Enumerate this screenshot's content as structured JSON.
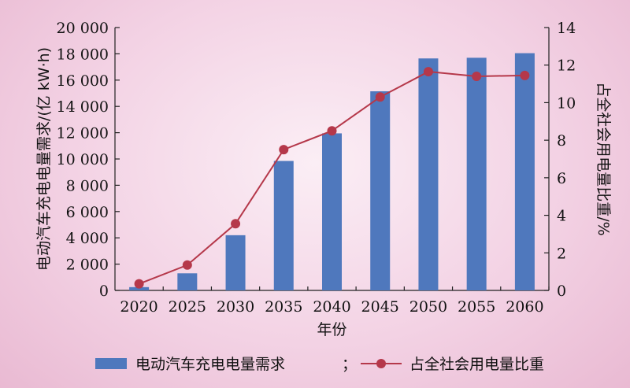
{
  "chart_data": {
    "type": "bar",
    "categories": [
      "2020",
      "2025",
      "2030",
      "2035",
      "2040",
      "2045",
      "2050",
      "2055",
      "2060"
    ],
    "series": [
      {
        "name": "电动汽车充电电量需求",
        "type": "bar",
        "axis": "left",
        "color": "#4f78bd",
        "values": [
          250,
          1300,
          4200,
          9850,
          11950,
          15150,
          17650,
          17700,
          18050
        ]
      },
      {
        "name": "占全社会用电量比重",
        "type": "line",
        "axis": "right",
        "color": "#b5384a",
        "values": [
          0.35,
          1.35,
          3.55,
          7.5,
          8.5,
          10.3,
          11.65,
          11.4,
          11.45
        ]
      }
    ],
    "xlabel": "年份",
    "ylabel": "电动汽车充电电量需求/(亿 kW·h)",
    "y2label": "占全社会用电量比重/%",
    "ylim": [
      0,
      20000
    ],
    "y2lim": [
      0,
      14
    ],
    "yticks": [
      "0",
      "2 000",
      "4 000",
      "6 000",
      "8 000",
      "10 000",
      "12 000",
      "14 000",
      "16 000",
      "18 000",
      "20 000"
    ],
    "y2ticks": [
      "0",
      "2",
      "4",
      "6",
      "8",
      "10",
      "12",
      "14"
    ],
    "legend": {
      "position": "bottom",
      "separator": "；"
    }
  }
}
